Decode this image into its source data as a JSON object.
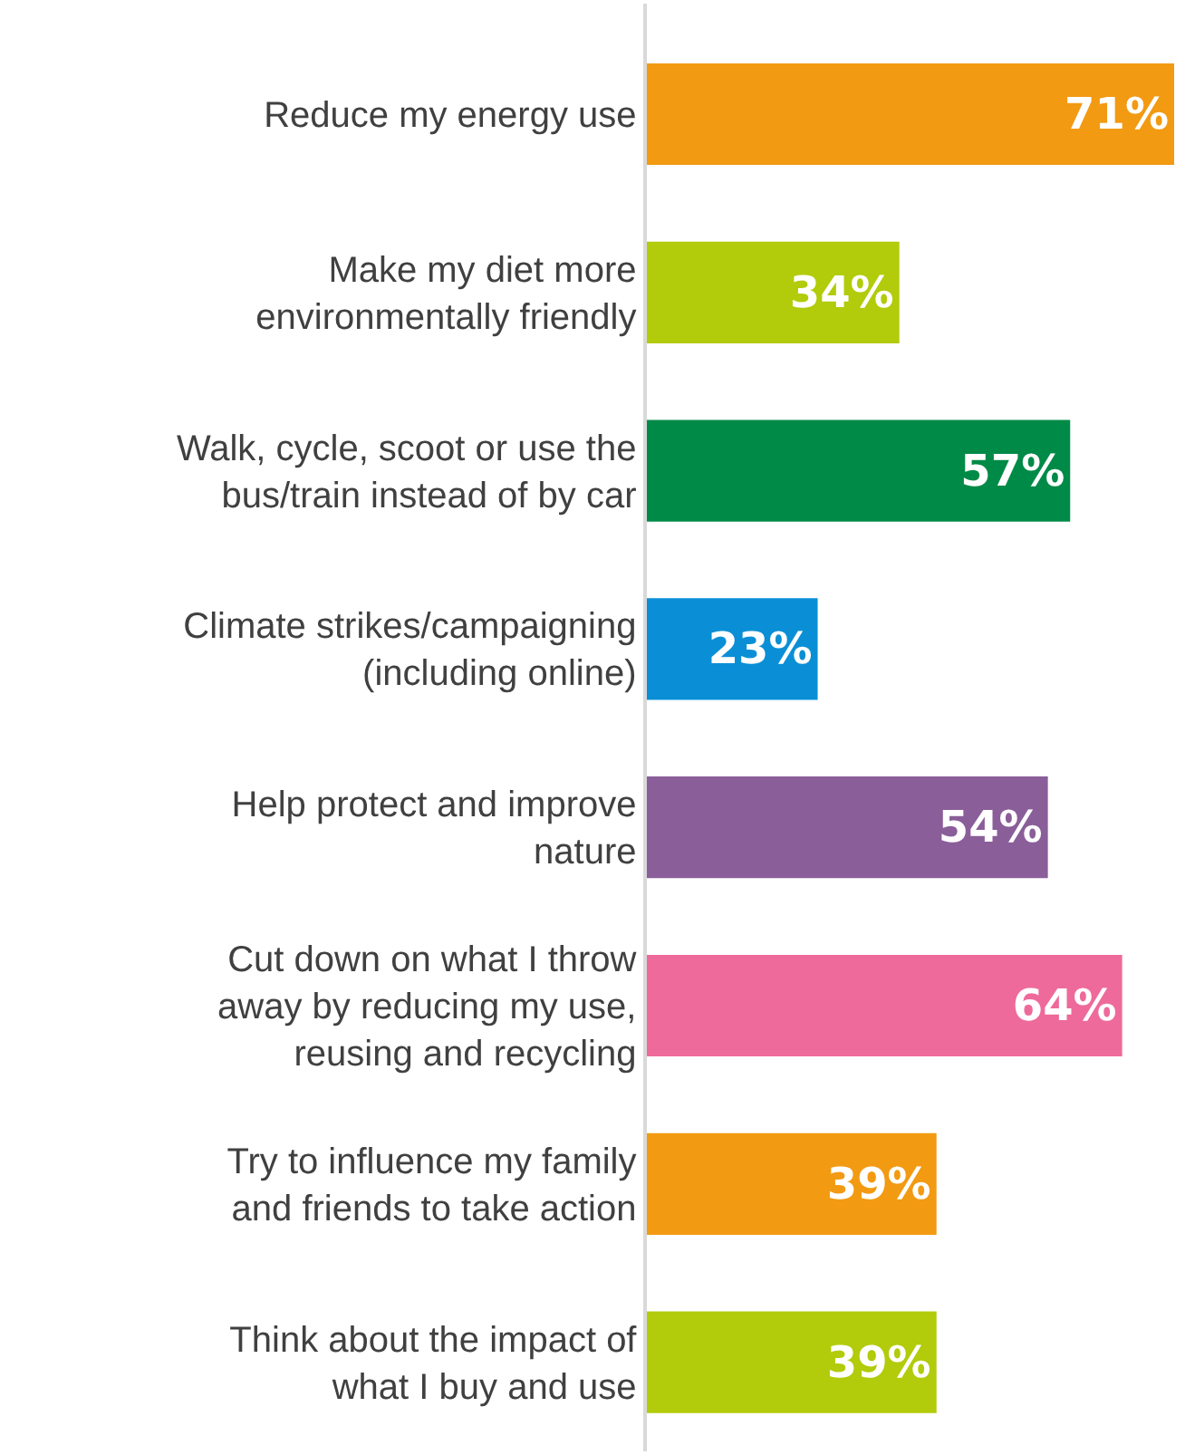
{
  "chart_data": {
    "type": "bar",
    "orientation": "horizontal",
    "categories": [
      "Reduce my energy use",
      "Make my diet more\nenvironmentally friendly",
      "Walk, cycle, scoot or use the\nbus/train instead of by car",
      "Climate strikes/campaigning\n(including online)",
      "Help protect and improve\nnature",
      "Cut down on what I throw\naway by reducing my use,\nreusing and recycling",
      "Try to influence my family\nand friends to take action",
      "Think about the impact of\nwhat I buy and use"
    ],
    "values": [
      71,
      34,
      57,
      23,
      54,
      64,
      39,
      39
    ],
    "value_labels": [
      "71%",
      "34%",
      "57%",
      "23%",
      "54%",
      "64%",
      "39%",
      "39%"
    ],
    "colors": [
      "#f29a12",
      "#b2cb0a",
      "#008a47",
      "#0a8fd6",
      "#8a5e99",
      "#ee6a9a",
      "#f29a12",
      "#b2cb0a"
    ],
    "xlim": [
      0,
      71
    ],
    "tick_labels": "y",
    "legend": false
  }
}
